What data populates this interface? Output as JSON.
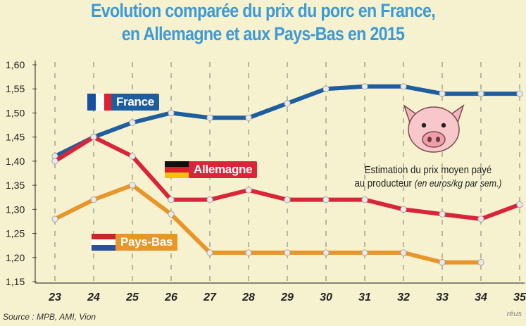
{
  "chart_data": {
    "type": "line",
    "title_lines": [
      "Evolution comparée du prix du porc en France,",
      "en Allemagne et aux Pays-Bas en 2015"
    ],
    "x": [
      23,
      24,
      25,
      26,
      27,
      28,
      29,
      30,
      31,
      32,
      33,
      34,
      35
    ],
    "xlim": [
      23,
      35
    ],
    "ylim": [
      1.15,
      1.6
    ],
    "yticks": [
      "1,15",
      "1,20",
      "1,25",
      "1,30",
      "1,35",
      "1,40",
      "1,45",
      "1,50",
      "1,55",
      "1,60"
    ],
    "ytick_values": [
      1.15,
      1.2,
      1.25,
      1.3,
      1.35,
      1.4,
      1.45,
      1.5,
      1.55,
      1.6
    ],
    "grid": "vertical dashed",
    "series": [
      {
        "name": "France",
        "color": "#1f5e9e",
        "values": [
          1.41,
          1.45,
          1.48,
          1.5,
          1.49,
          1.49,
          1.52,
          1.55,
          1.555,
          1.555,
          1.54,
          1.54,
          1.54
        ]
      },
      {
        "name": "Allemagne",
        "color": "#d9253a",
        "values": [
          1.4,
          1.45,
          1.41,
          1.32,
          1.32,
          1.34,
          1.32,
          1.32,
          1.32,
          1.3,
          1.29,
          1.28,
          1.31
        ]
      },
      {
        "name": "Pays-Bas",
        "color": "#e8952a",
        "values": [
          1.28,
          1.32,
          1.35,
          1.29,
          1.21,
          1.21,
          1.21,
          1.21,
          1.21,
          1.21,
          1.19,
          1.19,
          null
        ]
      }
    ],
    "note": "Estimation du prix moyen payé",
    "note_line2": "au producteur",
    "note_unit": "(en euros/kg par sem.)",
    "source": "Source : MPB, AMI, Vion",
    "credit": "réus"
  },
  "colors": {
    "background": "#f6f2cf",
    "title": "#3d9ad6",
    "grid": "#7a7a7a",
    "marker_fill": "#e9e9e9"
  },
  "flags": {
    "france": [
      "#1a4fa0",
      "#ffffff",
      "#e2202e"
    ],
    "allemagne": [
      "#111111",
      "#dd1f26",
      "#f3c010"
    ],
    "pays_bas": [
      "#c9252d",
      "#ffffff",
      "#2e4f9c"
    ]
  },
  "icons": {
    "pig": "pig-icon"
  }
}
